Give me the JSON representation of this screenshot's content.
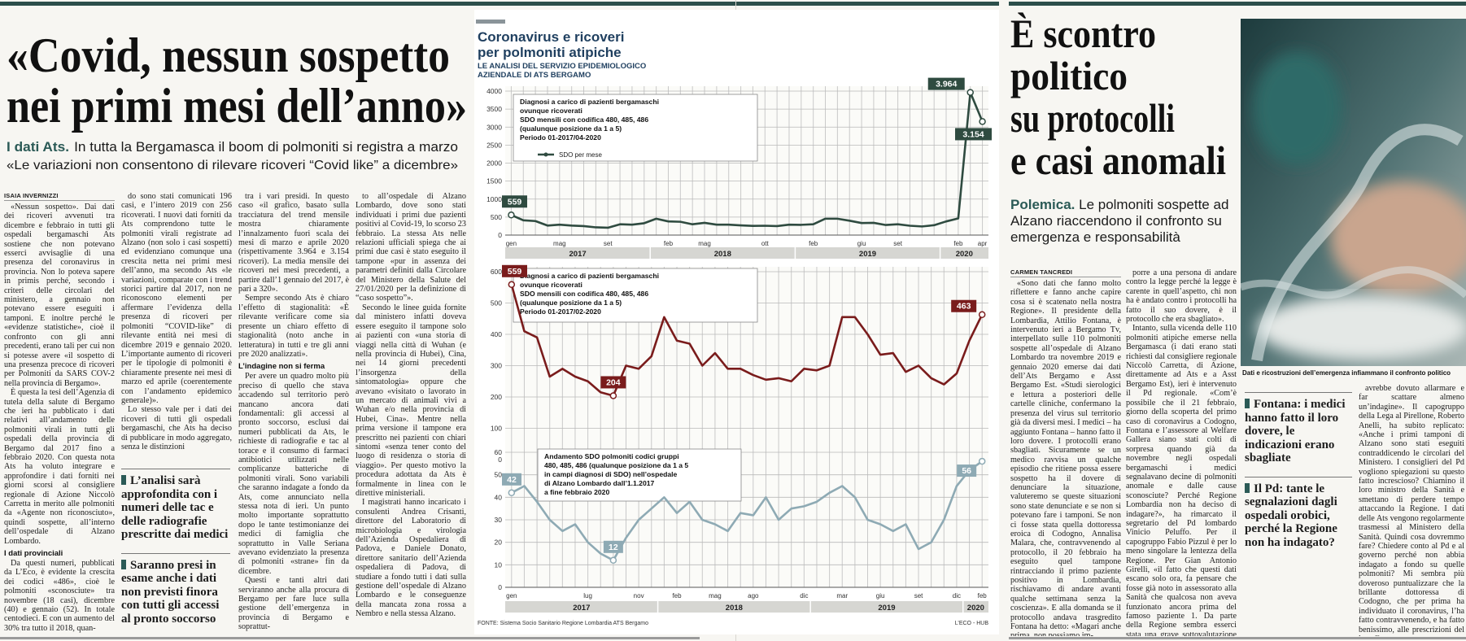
{
  "left_article": {
    "headline": [
      "«Covid, nessun sospetto",
      "nei primi mesi dell’anno»"
    ],
    "kicker_lead": "I dati Ats.",
    "kicker": "In tutta la Bergamasca il boom di polmoniti si registra a marzo",
    "subtitle": "«Le variazioni non consentono di rilevare ricoveri “Covid like” a dicembre»",
    "columns": [
      [
        {
          "byline": "ISAIA INVERNIZZI"
        },
        {
          "p": "«Nessun sospetto». Dai dati dei ricoveri avvenuti tra dicembre e febbraio in tutti gli ospedali bergamaschi Ats sostiene che non potevano esserci avvisaglie di una presenza del coronavirus in provincia. Non lo poteva sapere in primis perché, secondo i criteri delle circolari del ministero, a gennaio non potevano essere eseguiti i tamponi. E inoltre perché le «evidenze statistiche», cioè il confronto con gli anni precedenti, erano tali per cui non si potesse avere «il sospetto di una presenza precoce di ricoveri per Polmoniti da SARS COV-2 nella provincia di Bergamo»."
        },
        {
          "p": "È questa la tesi dell’Agenzia di tutela della salute di Bergamo che ieri ha pubblicato i dati relativi all’andamento delle polmoniti virali in tutti gli ospedali della provincia di Bergamo dal 2017 fino a febbraio 2020. Con questa nota Ats ha voluto integrare e approfondire i dati forniti nei giorni scorsi al consigliere regionale di Azione Niccolò Carretta in merito alle polmoniti da «Agente non riconosciuto», quindi sospette, all’interno dell’ospedale di Alzano Lombardo."
        },
        {
          "h": "I dati provinciali"
        },
        {
          "p": "Da questi numeri, pubblicati da L’Eco, è evidente la crescita dei codici «486», cioè le polmoniti «sconosciute» tra novembre (18 casi), dicembre (40) e gennaio (52). In totale centodieci. E con un aumento del 30% tra tutto il 2018, quan-"
        }
      ],
      [
        {
          "p": "do sono stati comunicati 196 casi, e l’intero 2019 con 256 ricoverati. I nuovi dati forniti da Ats comprendono tutte le polmoniti virali registrate ad Alzano (non solo i casi sospetti) ed evidenziano comunque una crescita netta nei primi mesi dell’anno, ma secondo Ats «le variazioni, comparate con i trend storici partire dal 2017, non ne riconoscono elementi per affermare l’evidenza della presenza di ricoveri per polmoniti “COVID-like” di rilevante entità nei mesi di dicembre 2019 e gennaio 2020. L’importante aumento di ricoveri per le tipologie di polmoniti è chiaramente presente nei mesi di marzo ed aprile (coerentemente con l’andamento epidemico generale)»."
        },
        {
          "p": "Lo stesso vale per i dati dei ricoveri di tutti gli ospedali bergamaschi, che Ats ha deciso di pubblicare in modo aggregato, senza le distinzioni"
        }
      ],
      [
        {
          "p": "tra i vari presidi. In questo caso «il grafico, basato sulla tracciatura del trend mensile mostra chiaramente l’innalzamento fuori scala dei mesi di marzo e aprile 2020 (rispettivamente 3.964 e 3.154 ricoveri). La media mensile dei ricoveri nei mesi precedenti, a partire dall’1 gennaio del 2017, è pari a 320»."
        },
        {
          "p": "Sempre secondo Ats è chiaro l’effetto di stagionalità: «È rilevante verificare come sia presente un chiaro effetto di stagionalità (noto anche in letteratura) in tutti e tre gli anni pre 2020 analizzati»."
        },
        {
          "h": "L’indagine non si ferma"
        },
        {
          "p": "Per avere un quadro molto più preciso di quello che stava accadendo sul territorio però mancano ancora dati fondamentali: gli accessi al pronto soccorso, esclusi dai numeri pubblicati da Ats, le richieste di radiografie e tac al torace e il consumo di farmaci antibiotici utilizzati nelle complicanze batteriche di polmoniti virali. Sono variabili che saranno indagate a fondo da Ats, come annunciato nella stessa nota di ieri. Un punto molto importante soprattutto dopo le tante testimonianze dei medici di famiglia che soprattutto in Valle Seriana avevano evidenziato la presenza di polmoniti «strane» fin da dicembre."
        },
        {
          "p": "Questi e tanti altri dati serviranno anche alla procura di Bergamo per fare luce sulla gestione dell’emergenza in provincia di Bergamo e soprattut-"
        }
      ],
      [
        {
          "p": "to all’ospedale di Alzano Lombardo, dove sono stati individuati i primi due pazienti positivi al Covid-19, lo scorso 23 febbraio. La stessa Ats nelle relazioni ufficiali spiega che ai primi due casi è stato eseguito il tampone «pur in assenza dei parametri definiti dalla Circolare del Ministero della Salute del 27/01/2020 per la definizione di “caso sospetto”»."
        },
        {
          "p": "Secondo le linee guida fornite dal ministero infatti doveva essere eseguito il tampone solo ai pazienti con «una storia di viaggi nella città di Wuhan (e nella provincia di Hubei), Cina, nei 14 giorni precedenti l’insorgenza della sintomatologia» oppure che avevano «visitato o lavorato in un mercato di animali vivi a Wuhan e/o nella provincia di Hubei, Cina». Mentre nella prima versione il tampone era prescritto nei pazienti con chiari sintomi «senza tener conto del luogo di residenza o storia di viaggio». Per questo motivo la procedura adottata da Ats è formalmente in linea con le direttive ministeriali."
        },
        {
          "p": "I magistrati hanno incaricato i consulenti Andrea Crisanti, direttore del Laboratorio di microbiologia e virologia dell’Azienda Ospedaliera di Padova, e Daniele Donato, direttore sanitario dell’Azienda ospedaliera di Padova, di studiare a fondo tutti i dati sulla gestione dell’ospedale di Alzano Lombardo e le conseguenze della mancata zona rossa a Nembro e nella stessa Alzano."
        }
      ]
    ],
    "quotes": [
      "L’analisi sarà approfondita con i numeri delle tac e delle radiografie prescritte dai medici",
      "Saranno presi in esame anche i dati non previsti finora con tutti gli accessi al pronto soccorso"
    ]
  },
  "infographic": {
    "title": [
      "Coronavirus e ricoveri",
      "per polmoniti atipiche"
    ],
    "subtitle": [
      "LE ANALISI DEL SERVIZIO EPIDEMIOLOGICO",
      "AZIENDALE DI ATS BERGAMO"
    ],
    "charts": [
      {
        "type": "line",
        "info": [
          "Diagnosi a carico di pazienti bergamaschi",
          "ovunque ricoverati",
          "SDO mensili con codifica 480, 485, 486",
          "(qualunque posizione da 1 a 5)",
          "Periodo 01-2017/04-2020"
        ],
        "categories": [
          "gen",
          null,
          null,
          null,
          "mag",
          null,
          null,
          null,
          "set",
          null,
          null,
          null,
          null,
          "feb",
          null,
          null,
          "mag",
          null,
          null,
          null,
          null,
          "ott",
          null,
          null,
          null,
          "feb",
          null,
          null,
          null,
          "giu",
          null,
          null,
          "set",
          null,
          null,
          null,
          null,
          "feb",
          null,
          "apr"
        ],
        "years": [
          "2017",
          "2018",
          "2019",
          "2020"
        ],
        "series": [
          {
            "name": "SDO per mese",
            "color": "#2f4b40",
            "values": [
              559,
              410,
              390,
              265,
              290,
              265,
              250,
              215,
              204,
              300,
              290,
              330,
              455,
              380,
              370,
              300,
              340,
              290,
              290,
              270,
              255,
              260,
              250,
              290,
              285,
              300,
              455,
              455,
              400,
              335,
              340,
              280,
              300,
              260,
              240,
              275,
              380,
              463,
              3964,
              3154
            ],
            "value_labels": [
              "559",
              null,
              null,
              null,
              null,
              null,
              null,
              null,
              null,
              null,
              null,
              null,
              null,
              null,
              null,
              null,
              null,
              null,
              null,
              null,
              null,
              null,
              null,
              null,
              null,
              null,
              null,
              null,
              null,
              null,
              null,
              null,
              null,
              null,
              null,
              null,
              null,
              null,
              "3.964",
              "3.154"
            ]
          }
        ],
        "ylim": [
          0,
          4000
        ],
        "yticks": [
          0,
          500,
          1000,
          1500,
          2000,
          2500,
          3000,
          3500,
          4000
        ],
        "grid": true
      },
      {
        "type": "line",
        "info": [
          "Diagnosi a carico di pazienti bergamaschi",
          "ovunque ricoverati",
          "SDO mensili con codifica 480, 485, 486",
          "(qualunque posizione da 1 a 5)",
          "Periodo 01-2017/02-2020"
        ],
        "categories": [
          "gen",
          null,
          null,
          "apr",
          null,
          null,
          "lug",
          null,
          null,
          null,
          "nov",
          null,
          null,
          "feb",
          null,
          null,
          "mag",
          null,
          null,
          "ago",
          null,
          null,
          null,
          "dic",
          null,
          null,
          "mar",
          null,
          null,
          "giu",
          null,
          null,
          "set",
          null,
          null,
          "dic",
          null,
          "feb"
        ],
        "years": [
          "2017",
          "2018",
          "2019",
          "2020"
        ],
        "series": [
          {
            "color": "#7a1c1c",
            "values": [
              559,
              410,
              390,
              265,
              290,
              265,
              250,
              215,
              204,
              300,
              290,
              330,
              455,
              380,
              370,
              300,
              340,
              290,
              290,
              270,
              255,
              260,
              250,
              290,
              285,
              300,
              455,
              455,
              400,
              335,
              340,
              280,
              300,
              260,
              240,
              275,
              380,
              463
            ],
            "value_labels": [
              "559",
              null,
              null,
              null,
              null,
              null,
              null,
              null,
              "204",
              null,
              null,
              null,
              null,
              null,
              null,
              null,
              null,
              null,
              null,
              null,
              null,
              null,
              null,
              null,
              null,
              null,
              null,
              null,
              null,
              null,
              null,
              null,
              null,
              null,
              null,
              null,
              null,
              "463"
            ]
          }
        ],
        "ylim": [
          0,
          600
        ],
        "yticks": [
          0,
          100,
          200,
          300,
          400,
          500,
          600
        ],
        "grid": true
      },
      {
        "type": "line",
        "info": [
          "Andamento SDO polmoniti codici gruppi",
          "480, 485, 486 (qualunque posizione da 1 a 5",
          "in campi diagnosi di SDO) nell’ospedale",
          "di Alzano Lombardo dall’1.1.2017",
          "a fine febbraio 2020"
        ],
        "categories": [
          "gen",
          null,
          null,
          null,
          null,
          null,
          "lug",
          null,
          null,
          null,
          "nov",
          null,
          null,
          "feb",
          null,
          null,
          "mag",
          null,
          null,
          "ago",
          null,
          null,
          null,
          "dic",
          null,
          null,
          "mar",
          null,
          null,
          "giu",
          null,
          null,
          "set",
          null,
          null,
          "dic",
          null,
          "feb"
        ],
        "years": [
          "2017",
          "2018",
          "2019",
          "2020"
        ],
        "series": [
          {
            "color": "#8eaab4",
            "values": [
              42,
              45,
              38,
              30,
              25,
              28,
              20,
              15,
              12,
              22,
              30,
              35,
              40,
              33,
              38,
              30,
              28,
              25,
              33,
              32,
              40,
              30,
              35,
              36,
              38,
              42,
              45,
              40,
              30,
              28,
              25,
              28,
              17,
              20,
              30,
              45,
              52,
              56
            ],
            "value_labels": [
              "42",
              null,
              null,
              null,
              null,
              null,
              null,
              null,
              "12",
              null,
              null,
              null,
              null,
              null,
              null,
              null,
              null,
              null,
              null,
              null,
              null,
              null,
              null,
              null,
              null,
              null,
              null,
              null,
              null,
              null,
              null,
              null,
              null,
              null,
              null,
              null,
              null,
              "56"
            ]
          }
        ],
        "ylim": [
          0,
          60
        ],
        "yticks": [
          0,
          10,
          20,
          30,
          40,
          50,
          60
        ],
        "grid": true
      }
    ],
    "source": "FONTE: Sistema Socio Sanitario Regione Lombardia ATS Bergamo",
    "credit": "L’ECO - HUB"
  },
  "right_article": {
    "headline": [
      "È scontro",
      "politico",
      "su protocolli",
      "e casi anomali"
    ],
    "lead_label": "Polemica.",
    "lead": "Le polmoniti sospette ad Alzano riaccendono il confronto su emergenza e responsabilità",
    "caption": "Dati e ricostruzioni dell’emergenza infiammano il confronto politico",
    "columns": [
      [
        {
          "byline": "CARMEN TANCREDI"
        },
        {
          "p": "«Sono dati che fanno molto riflettere e fanno anche capire cosa si è scatenato nella nostra Regione». Il presidente della Lombardia, Attilio Fontana, è intervenuto ieri a Bergamo Tv, interpellato sulle 110 polmoniti sospette all’ospedale di Alzano Lombardo tra novembre 2019 e gennaio 2020 emerse dai dati dell’Ats Bergamo e Asst Bergamo Est. «Studi sierologici e lettura a posteriori delle cartelle cliniche, confermano la presenza del virus sul territorio già da diversi mesi. I medici – ha aggiunto Fontana – hanno fatto il loro dovere. I protocolli erano sbagliati. Sicuramente se un medico ravvisa un qualche episodio che ritiene possa essere sospetto ha il dovere di denunciare la situazione, valuteremo se queste situazioni sono state denunciate e se non si potevano fare i tamponi. Se non ci fosse stata quella dottoressa eroica di Codogno, Annalisa Malara, che, contravvenendo al protocollo, il 20 febbraio ha eseguito quel tampone rintracciando il primo paziente positivo in Lombardia, rischiavamo di andare avanti qualche settimana senza la coscienza». E alla domanda se il protocollo andava trasgredito Fontana ha detto: «Magari anche prima, non possiamo im-"
        }
      ],
      [
        {
          "p": "porre a una persona di andare contro la legge perché la legge è carente in quell’aspetto, chi non ha è andato contro i protocolli ha fatto il suo dovere, è il protocollo che era sbagliato»."
        },
        {
          "p": "Intanto, sulla vicenda delle 110 polmoniti atipiche emerse nella Bergamasca (i dati erano stati richiesti dal consigliere regionale Niccolò Carretta, di Azione, direttamente ad Ats e a Asst Bergamo Est), ieri è intervenuto il Pd regionale. «Com’è possibile che il 21 febbraio, giorno della scoperta del primo caso di coronavirus a Codogno, Fontana e l’assessore al Welfare Gallera siano stati colti di sorpresa quando già da novembre negli ospedali bergamaschi i medici segnalavano decine di polmoniti anomale e dalle cause sconosciute? Perché Regione Lombardia non ha deciso di indagare?», ha rimarcato il segretario del Pd lombardo Vinicio Peluffo. Per il capogruppo Fabio Pizzul è per lo meno singolare la lentezza della Regione. Per Gian Antonio Girelli, «il fatto che questi dati escano solo ora, fa pensare che fosse già noto in assessorato alla Sanità che qualcosa non aveva funzionato ancora prima del famoso paziente 1. Da parte della Regione sembra esserci stata una grave sottovalutazione di un fatto che"
        }
      ],
      [
        {
          "p": "avrebbe dovuto allarmare e far scattare almeno un’indagine». Il capogruppo della Lega al Pirellone, Roberto Anelli, ha subito replicato: «Anche i primi tamponi di Alzano sono stati eseguiti contraddicendo le circolari del Ministero. I consiglieri del Pd vogliono spiegazioni su questo fatto increscioso? Chiamino il loro ministro della Sanità e smettano di perdere tempo attaccando la Regione. I dati delle Ats vengono regolarmente trasmessi al Ministero della Sanità. Quindi cosa dovremmo fare? Chiedere conto al Pd e al governo perché non abbia indagato a fondo su quelle polmoniti? Mi sembra più doveroso puntualizzare che la brillante dottoressa di Codogno, che per prima ha individuato il coronavirus, l’ha fatto contravvenendo, e ha fatto benissimo, alle prescrizioni del loro Governo»."
        }
      ]
    ],
    "quotes": [
      "Fontana: i medici hanno fatto il loro dovere, le indicazioni erano sbagliate",
      "Il Pd: tante le segnalazioni dagli ospedali orobici, perché la Regione non ha indagato?"
    ]
  }
}
